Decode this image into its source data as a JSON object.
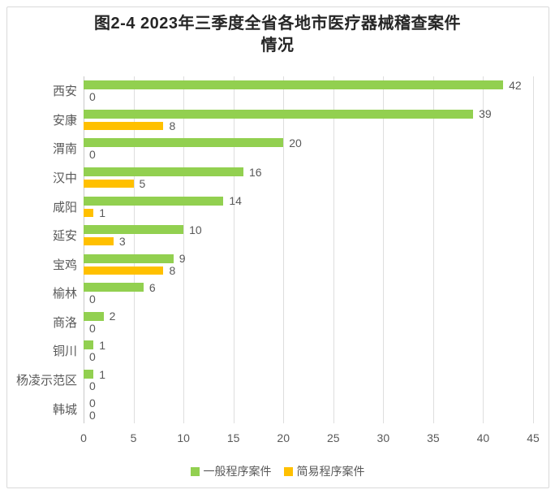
{
  "title": {
    "line1": "图2-4 2023年三季度全省各地市医疗器械稽查案件",
    "line2": "情况"
  },
  "chart_data": {
    "type": "bar",
    "orientation": "horizontal",
    "title": "图2-4 2023年三季度全省各地市医疗器械稽查案件情况",
    "categories": [
      "西安",
      "安康",
      "渭南",
      "汉中",
      "咸阳",
      "延安",
      "宝鸡",
      "榆林",
      "商洛",
      "铜川",
      "杨凌示范区",
      "韩城"
    ],
    "series": [
      {
        "name": "一般程序案件",
        "color": "#92d050",
        "values": [
          42,
          39,
          20,
          16,
          14,
          10,
          9,
          6,
          2,
          1,
          1,
          0
        ]
      },
      {
        "name": "简易程序案件",
        "color": "#ffc000",
        "values": [
          0,
          8,
          0,
          5,
          1,
          3,
          8,
          0,
          0,
          0,
          0,
          0
        ]
      }
    ],
    "xlim": [
      0,
      45
    ],
    "xticks": [
      0,
      5,
      10,
      15,
      20,
      25,
      30,
      35,
      40,
      45
    ],
    "grid": "vertical",
    "legend_position": "bottom",
    "data_labels": true
  },
  "colors": {
    "series_general": "#92d050",
    "series_simple": "#ffc000",
    "text": "#595959",
    "title_text": "#262626",
    "gridline": "#dedede",
    "frame_border": "#d9d9d9"
  }
}
